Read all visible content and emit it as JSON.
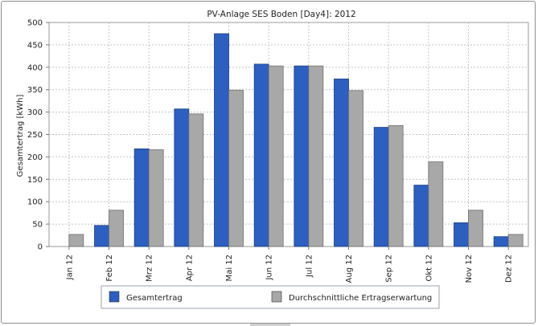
{
  "chart_data": {
    "type": "bar",
    "title": "PV-Anlage SES Boden [Day4]: 2012",
    "xlabel": "",
    "ylabel": "Gesamtertrag [kWh]",
    "ylim": [
      0,
      500
    ],
    "yticks": [
      0,
      50,
      100,
      150,
      200,
      250,
      300,
      350,
      400,
      450,
      500
    ],
    "grid": true,
    "legend_position": "bottom",
    "categories": [
      "Jan 12",
      "Feb 12",
      "Mrz 12",
      "Apr 12",
      "Mai 12",
      "Jun 12",
      "Jul 12",
      "Aug 12",
      "Sep 12",
      "Okt 12",
      "Nov 12",
      "Dez 12"
    ],
    "series": [
      {
        "name": "Gesamtertrag",
        "color": "#2c5fbf",
        "values": [
          0,
          47,
          218,
          307,
          475,
          407,
          403,
          374,
          266,
          137,
          53,
          22
        ]
      },
      {
        "name": "Durchschnittliche Ertragserwartung",
        "color": "#a8a8a8",
        "values": [
          27,
          81,
          216,
          296,
          349,
          403,
          403,
          348,
          270,
          189,
          81,
          27
        ]
      }
    ]
  }
}
